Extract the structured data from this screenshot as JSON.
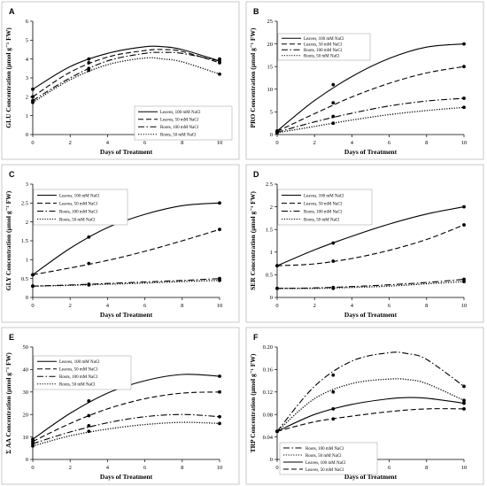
{
  "chart_data": [
    {
      "type": "line",
      "panel": "A",
      "xlabel": "Days of Treatment",
      "ylabel": "GLU Concentration (µmol g⁻¹ FW)",
      "xlim": [
        0,
        10
      ],
      "ylim": [
        0,
        6
      ],
      "xticks": [
        0,
        2,
        4,
        6,
        8,
        10
      ],
      "yticks": [
        0,
        1,
        2,
        3,
        4,
        5,
        6
      ],
      "legend_position": "bottom-right",
      "series": [
        {
          "name": "Leaves, 100 mM NaCl",
          "style": "solid",
          "x": [
            0,
            3,
            10
          ],
          "y": [
            2.4,
            4.0,
            4.0
          ],
          "curve": [
            [
              0,
              2.4
            ],
            [
              2,
              3.6
            ],
            [
              4,
              4.3
            ],
            [
              6,
              4.65
            ],
            [
              7,
              4.65
            ],
            [
              8,
              4.5
            ],
            [
              10,
              3.9
            ]
          ]
        },
        {
          "name": "Leaves, 50 mM NaCl",
          "style": "dashed",
          "x": [
            0,
            3,
            10
          ],
          "y": [
            2.0,
            3.8,
            3.8
          ],
          "curve": [
            [
              0,
              2.0
            ],
            [
              2,
              3.3
            ],
            [
              4,
              4.1
            ],
            [
              6,
              4.45
            ],
            [
              7,
              4.5
            ],
            [
              8,
              4.4
            ],
            [
              10,
              3.8
            ]
          ]
        },
        {
          "name": "Roots, 100 mM NaCl",
          "style": "dashdot",
          "x": [
            0,
            3,
            10
          ],
          "y": [
            1.8,
            3.5,
            3.9
          ],
          "curve": [
            [
              0,
              1.8
            ],
            [
              2,
              3.0
            ],
            [
              4,
              3.9
            ],
            [
              6,
              4.3
            ],
            [
              7,
              4.35
            ],
            [
              8,
              4.3
            ],
            [
              10,
              3.9
            ]
          ]
        },
        {
          "name": "Roots, 50 mM NaCl",
          "style": "dotted",
          "x": [
            0,
            3,
            10
          ],
          "y": [
            1.7,
            3.4,
            3.2
          ],
          "curve": [
            [
              0,
              1.7
            ],
            [
              2,
              2.9
            ],
            [
              4,
              3.7
            ],
            [
              6,
              4.05
            ],
            [
              7,
              4.0
            ],
            [
              8,
              3.85
            ],
            [
              10,
              3.2
            ]
          ]
        }
      ]
    },
    {
      "type": "line",
      "panel": "B",
      "xlabel": "Days of Treatment",
      "ylabel": "PRO Concentration (µmol g⁻¹ FW)",
      "xlim": [
        0,
        10
      ],
      "ylim": [
        0,
        25
      ],
      "xticks": [
        0,
        2,
        4,
        6,
        8,
        10
      ],
      "yticks": [
        0,
        5,
        10,
        15,
        20,
        25
      ],
      "legend_position": "top-left",
      "series": [
        {
          "name": "Leaves, 100 mM NaCl",
          "style": "solid",
          "x": [
            0,
            3,
            10
          ],
          "y": [
            0.8,
            11,
            20
          ],
          "curve": [
            [
              0,
              0.8
            ],
            [
              2,
              7.5
            ],
            [
              4,
              12.8
            ],
            [
              6,
              16.8
            ],
            [
              8,
              19.3
            ],
            [
              10,
              20
            ]
          ]
        },
        {
          "name": "Leaves, 50 mM NaCl",
          "style": "dashed",
          "x": [
            0,
            3,
            10
          ],
          "y": [
            0.7,
            7.0,
            15
          ],
          "curve": [
            [
              0,
              0.7
            ],
            [
              2,
              4.6
            ],
            [
              4,
              8.3
            ],
            [
              6,
              11.3
            ],
            [
              8,
              13.6
            ],
            [
              10,
              15
            ]
          ]
        },
        {
          "name": "Roots, 100 mM NaCl",
          "style": "dashdot",
          "x": [
            0,
            3,
            10
          ],
          "y": [
            0.5,
            4.0,
            8.0
          ],
          "curve": [
            [
              0,
              0.5
            ],
            [
              2,
              2.8
            ],
            [
              4,
              4.7
            ],
            [
              6,
              6.3
            ],
            [
              8,
              7.4
            ],
            [
              10,
              8.0
            ]
          ]
        },
        {
          "name": "Roots, 50 mM NaCl",
          "style": "dotted",
          "x": [
            0,
            3,
            10
          ],
          "y": [
            0.4,
            2.5,
            6.0
          ],
          "curve": [
            [
              0,
              0.4
            ],
            [
              2,
              1.8
            ],
            [
              4,
              3.2
            ],
            [
              6,
              4.4
            ],
            [
              8,
              5.3
            ],
            [
              10,
              6.0
            ]
          ]
        }
      ]
    },
    {
      "type": "line",
      "panel": "C",
      "xlabel": "Days of Treatment",
      "ylabel": "GLY Concentration (µmol g⁻¹ FW)",
      "xlim": [
        0,
        10
      ],
      "ylim": [
        0,
        3
      ],
      "xticks": [
        0,
        2,
        4,
        6,
        8,
        10
      ],
      "yticks": [
        0,
        0.5,
        1.0,
        1.5,
        2.0,
        2.5,
        3.0
      ],
      "legend_position": "top-left",
      "series": [
        {
          "name": "Leaves, 100 mM NaCl",
          "style": "solid",
          "x": [
            0,
            3,
            10
          ],
          "y": [
            0.6,
            1.6,
            2.5
          ],
          "curve": [
            [
              0,
              0.6
            ],
            [
              2,
              1.3
            ],
            [
              4,
              1.85
            ],
            [
              6,
              2.2
            ],
            [
              8,
              2.43
            ],
            [
              10,
              2.5
            ]
          ]
        },
        {
          "name": "Leaves, 50 mM NaCl",
          "style": "dashed",
          "x": [
            0,
            3,
            10
          ],
          "y": [
            0.6,
            0.9,
            1.8
          ],
          "curve": [
            [
              0,
              0.6
            ],
            [
              2,
              0.78
            ],
            [
              4,
              0.98
            ],
            [
              6,
              1.22
            ],
            [
              8,
              1.5
            ],
            [
              10,
              1.8
            ]
          ]
        },
        {
          "name": "Roots, 100 mM NaCl",
          "style": "dashdot",
          "x": [
            0,
            3,
            10
          ],
          "y": [
            0.3,
            0.35,
            0.5
          ],
          "curve": [
            [
              0,
              0.3
            ],
            [
              2,
              0.33
            ],
            [
              4,
              0.37
            ],
            [
              6,
              0.41
            ],
            [
              8,
              0.45
            ],
            [
              10,
              0.5
            ]
          ]
        },
        {
          "name": "Roots, 50 mM NaCl",
          "style": "dotted",
          "x": [
            0,
            3,
            10
          ],
          "y": [
            0.3,
            0.33,
            0.45
          ],
          "curve": [
            [
              0,
              0.3
            ],
            [
              2,
              0.32
            ],
            [
              4,
              0.35
            ],
            [
              6,
              0.38
            ],
            [
              8,
              0.42
            ],
            [
              10,
              0.45
            ]
          ]
        }
      ]
    },
    {
      "type": "line",
      "panel": "D",
      "xlabel": "Days of Treatment",
      "ylabel": "SER Concentration (µmol g⁻¹ FW)",
      "xlim": [
        0,
        10
      ],
      "ylim": [
        0,
        2.5
      ],
      "xticks": [
        0,
        2,
        4,
        6,
        8,
        10
      ],
      "yticks": [
        0,
        0.5,
        1.0,
        1.5,
        2.0,
        2.5
      ],
      "legend_position": "top-left",
      "series": [
        {
          "name": "Leaves, 100 mM NaCl",
          "style": "solid",
          "x": [
            0,
            3,
            10
          ],
          "y": [
            0.7,
            1.2,
            2.0
          ],
          "curve": [
            [
              0,
              0.7
            ],
            [
              2,
              1.05
            ],
            [
              4,
              1.35
            ],
            [
              6,
              1.62
            ],
            [
              8,
              1.84
            ],
            [
              10,
              2.0
            ]
          ]
        },
        {
          "name": "Leaves, 50 mM NaCl",
          "style": "dashed",
          "x": [
            0,
            3,
            10
          ],
          "y": [
            0.7,
            0.8,
            1.6
          ],
          "curve": [
            [
              0,
              0.7
            ],
            [
              2,
              0.74
            ],
            [
              4,
              0.86
            ],
            [
              6,
              1.04
            ],
            [
              8,
              1.28
            ],
            [
              10,
              1.6
            ]
          ]
        },
        {
          "name": "Roots, 100 mM NaCl",
          "style": "dashdot",
          "x": [
            0,
            3,
            10
          ],
          "y": [
            0.2,
            0.22,
            0.4
          ],
          "curve": [
            [
              0,
              0.2
            ],
            [
              2,
              0.21
            ],
            [
              4,
              0.24
            ],
            [
              6,
              0.28
            ],
            [
              8,
              0.33
            ],
            [
              10,
              0.4
            ]
          ]
        },
        {
          "name": "Roots, 50 mM NaCl",
          "style": "dotted",
          "x": [
            0,
            3,
            10
          ],
          "y": [
            0.2,
            0.2,
            0.35
          ],
          "curve": [
            [
              0,
              0.2
            ],
            [
              2,
              0.2
            ],
            [
              4,
              0.22
            ],
            [
              6,
              0.25
            ],
            [
              8,
              0.3
            ],
            [
              10,
              0.35
            ]
          ]
        }
      ]
    },
    {
      "type": "line",
      "panel": "E",
      "xlabel": "Days of Treatment",
      "ylabel": "Σ AA Concentration (µmol g⁻¹ FW)",
      "xlim": [
        0,
        10
      ],
      "ylim": [
        0,
        50
      ],
      "xticks": [
        0,
        2,
        4,
        6,
        8,
        10
      ],
      "yticks": [
        0,
        10,
        20,
        30,
        40,
        50
      ],
      "legend_position": "top-left",
      "series": [
        {
          "name": "Leaves, 100 mM NaCl",
          "style": "solid",
          "x": [
            0,
            3,
            10
          ],
          "y": [
            9,
            26,
            37
          ],
          "curve": [
            [
              0,
              9
            ],
            [
              2,
              20.5
            ],
            [
              4,
              29.5
            ],
            [
              6,
              35
            ],
            [
              8,
              37.8
            ],
            [
              10,
              37
            ]
          ]
        },
        {
          "name": "Leaves, 50 mM NaCl",
          "style": "dashed",
          "x": [
            0,
            3,
            10
          ],
          "y": [
            8,
            19.5,
            30
          ],
          "curve": [
            [
              0,
              8
            ],
            [
              2,
              16
            ],
            [
              4,
              22.5
            ],
            [
              6,
              27
            ],
            [
              8,
              29.5
            ],
            [
              10,
              30
            ]
          ]
        },
        {
          "name": "Roots, 100 mM NaCl",
          "style": "dashdot",
          "x": [
            0,
            3,
            10
          ],
          "y": [
            7,
            15,
            19
          ],
          "curve": [
            [
              0,
              7
            ],
            [
              2,
              12.2
            ],
            [
              4,
              16.3
            ],
            [
              6,
              19
            ],
            [
              8,
              20
            ],
            [
              10,
              19
            ]
          ]
        },
        {
          "name": "Roots, 50 mM NaCl",
          "style": "dotted",
          "x": [
            0,
            3,
            10
          ],
          "y": [
            6,
            12.5,
            16
          ],
          "curve": [
            [
              0,
              6
            ],
            [
              2,
              10.5
            ],
            [
              4,
              13.5
            ],
            [
              6,
              15.5
            ],
            [
              8,
              16.5
            ],
            [
              10,
              16
            ]
          ]
        }
      ],
      "legend_labels": [
        "Leaves, 100 mM NaCl",
        "Leaves, 50 mM NaCl",
        "Roots, 100 mM NaCl",
        "Roots, 50 mM NaCl"
      ]
    },
    {
      "type": "line",
      "panel": "F",
      "xlabel": "Days of Treatment",
      "ylabel": "TRP Concentration (µmol g⁻¹ FW)",
      "xlim": [
        0,
        10
      ],
      "ylim": [
        0,
        0.2
      ],
      "xticks": [
        0,
        2,
        4,
        6,
        8,
        10
      ],
      "yticks": [
        0,
        0.04,
        0.08,
        0.12,
        0.16,
        0.2
      ],
      "ytick_labels": [
        "0",
        "0.04",
        "0.08",
        "0.12",
        "0.16",
        "0.20"
      ],
      "legend_position": "bottom-left",
      "series": [
        {
          "name": "Roots, 100 mM NaCl",
          "style": "dashdot",
          "x": [
            0,
            3,
            10
          ],
          "y": [
            0.05,
            0.15,
            0.13
          ],
          "curve": [
            [
              0,
              0.05
            ],
            [
              2,
              0.13
            ],
            [
              4,
              0.175
            ],
            [
              6,
              0.19
            ],
            [
              7,
              0.188
            ],
            [
              8,
              0.178
            ],
            [
              10,
              0.13
            ]
          ]
        },
        {
          "name": "Roots, 50 mM NaCl",
          "style": "dotted",
          "x": [
            0,
            3,
            10
          ],
          "y": [
            0.05,
            0.12,
            0.105
          ],
          "curve": [
            [
              0,
              0.05
            ],
            [
              2,
              0.108
            ],
            [
              4,
              0.135
            ],
            [
              6,
              0.143
            ],
            [
              7,
              0.142
            ],
            [
              8,
              0.135
            ],
            [
              10,
              0.105
            ]
          ]
        },
        {
          "name": "Leaves, 100 mM NaCl",
          "style": "solid",
          "x": [
            0,
            3,
            10
          ],
          "y": [
            0.05,
            0.09,
            0.1
          ],
          "curve": [
            [
              0,
              0.05
            ],
            [
              2,
              0.08
            ],
            [
              4,
              0.098
            ],
            [
              6,
              0.108
            ],
            [
              7,
              0.11
            ],
            [
              8,
              0.109
            ],
            [
              10,
              0.1
            ]
          ]
        },
        {
          "name": "Leaves, 50 mM NaCl",
          "style": "dashed",
          "x": [
            0,
            3,
            10
          ],
          "y": [
            0.05,
            0.072,
            0.09
          ],
          "curve": [
            [
              0,
              0.05
            ],
            [
              2,
              0.067
            ],
            [
              4,
              0.077
            ],
            [
              6,
              0.085
            ],
            [
              8,
              0.09
            ],
            [
              10,
              0.09
            ]
          ]
        }
      ]
    }
  ]
}
